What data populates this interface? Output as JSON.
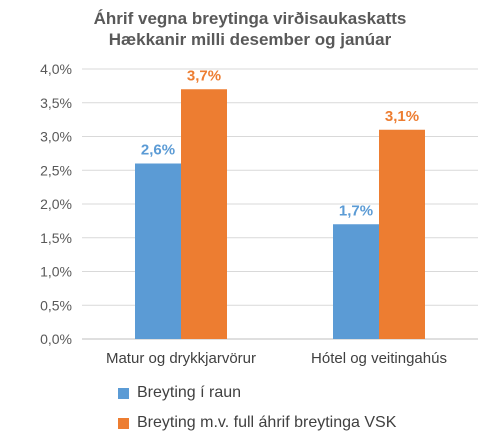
{
  "chart_data": {
    "type": "bar",
    "title": "Áhrif vegna breytinga virðisaukaskatts",
    "subtitle": "Hækkanir milli desember og janúar",
    "categories": [
      "Matur og drykkjarvörur",
      "Hótel og veitingahús"
    ],
    "series": [
      {
        "name": "Breyting í raun",
        "values": [
          2.6,
          1.7
        ],
        "labels": [
          "2,6%",
          "1,7%"
        ],
        "color": "#5B9BD5"
      },
      {
        "name": "Breyting m.v. full áhrif breytinga VSK",
        "values": [
          3.7,
          3.1
        ],
        "labels": [
          "3,7%",
          "3,1%"
        ],
        "color": "#ED7D31"
      }
    ],
    "ylim": [
      0,
      4.0
    ],
    "yticks": [
      {
        "value": 0.0,
        "label": "0,0%"
      },
      {
        "value": 0.5,
        "label": "0,5%"
      },
      {
        "value": 1.0,
        "label": "1,0%"
      },
      {
        "value": 1.5,
        "label": "1,5%"
      },
      {
        "value": 2.0,
        "label": "2,0%"
      },
      {
        "value": 2.5,
        "label": "2,5%"
      },
      {
        "value": 3.0,
        "label": "3,0%"
      },
      {
        "value": 3.5,
        "label": "3,5%"
      },
      {
        "value": 4.0,
        "label": "4,0%"
      }
    ],
    "grid": true,
    "legend_position": "bottom-left"
  }
}
